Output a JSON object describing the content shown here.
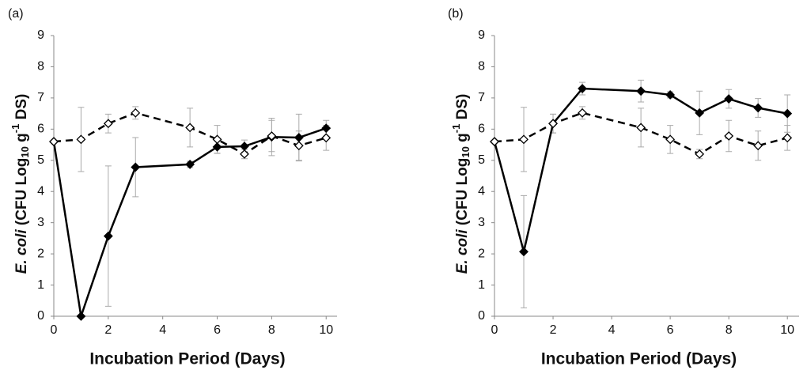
{
  "chart_data": [
    {
      "type": "line",
      "panel_label": "(a)",
      "ylabel": [
        "E. coli",
        " (CFU Log",
        "10",
        " g",
        "-1",
        " DS)"
      ],
      "xlabel": "Incubation Period (Days)",
      "x": [
        0,
        1,
        2,
        3,
        5,
        6,
        7,
        8,
        9,
        10
      ],
      "xlim": [
        0,
        10.4
      ],
      "xticks": [
        0,
        2,
        4,
        6,
        8,
        10
      ],
      "ylim": [
        0,
        9
      ],
      "yticks": [
        0,
        1,
        2,
        3,
        4,
        5,
        6,
        7,
        8,
        9
      ],
      "error_color": "#aaaaaa",
      "series": [
        {
          "color": "#000000",
          "line": "solid",
          "marker": "filled",
          "values": [
            5.6,
            0,
            2.57,
            4.78,
            4.87,
            5.43,
            5.45,
            5.75,
            5.73,
            6.03
          ],
          "errors": [
            null,
            null,
            2.25,
            0.95,
            0.1,
            0.2,
            0.2,
            0.6,
            0.75,
            0.25
          ]
        },
        {
          "color": "#000000",
          "line": "dashed",
          "marker": "open",
          "values": [
            5.6,
            5.67,
            6.18,
            6.52,
            6.05,
            5.67,
            5.2,
            5.78,
            5.47,
            5.72
          ],
          "errors": [
            null,
            1.03,
            0.3,
            0.2,
            0.62,
            0.45,
            0.15,
            0.5,
            0.47,
            0.4
          ]
        }
      ]
    },
    {
      "type": "line",
      "panel_label": "(b)",
      "ylabel": [
        "E. coli",
        " (CFU Log",
        "10",
        " g",
        "-1",
        " DS)"
      ],
      "xlabel": "Incubation Period (Days)",
      "x": [
        0,
        1,
        2,
        3,
        5,
        6,
        7,
        8,
        9,
        10
      ],
      "xlim": [
        0,
        10.4
      ],
      "xticks": [
        0,
        2,
        4,
        6,
        8,
        10
      ],
      "ylim": [
        0,
        9
      ],
      "yticks": [
        0,
        1,
        2,
        3,
        4,
        5,
        6,
        7,
        8,
        9
      ],
      "error_color": "#aaaaaa",
      "series": [
        {
          "color": "#000000",
          "line": "solid",
          "marker": "filled",
          "values": [
            5.6,
            2.07,
            6.18,
            7.3,
            7.22,
            7.1,
            6.52,
            6.97,
            6.68,
            6.5
          ],
          "errors": [
            null,
            1.8,
            0.3,
            0.2,
            0.35,
            0.1,
            0.7,
            0.3,
            0.3,
            0.6
          ]
        },
        {
          "color": "#000000",
          "line": "dashed",
          "marker": "open",
          "values": [
            5.6,
            5.67,
            6.18,
            6.52,
            6.05,
            5.67,
            5.2,
            5.78,
            5.47,
            5.72
          ],
          "errors": [
            null,
            1.03,
            0.3,
            0.2,
            0.62,
            0.45,
            0.15,
            0.5,
            0.47,
            0.4
          ]
        }
      ]
    }
  ]
}
